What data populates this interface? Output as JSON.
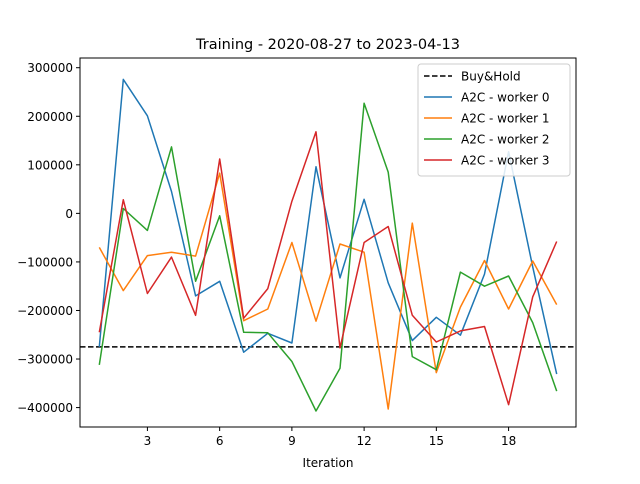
{
  "chart_data": {
    "type": "line",
    "title": "Training - 2020-08-27 to 2023-04-13",
    "xlabel": "Iteration",
    "ylabel": "",
    "xlim": [
      0.2,
      20.8
    ],
    "ylim": [
      -440000,
      320000
    ],
    "xticks": [
      3,
      6,
      9,
      12,
      15,
      18
    ],
    "yticks": [
      -400000,
      -300000,
      -200000,
      -100000,
      0,
      100000,
      200000,
      300000
    ],
    "xtick_labels": [
      "3",
      "6",
      "9",
      "12",
      "15",
      "18"
    ],
    "ytick_labels": [
      "−400000",
      "−300000",
      "−200000",
      "−100000",
      "0",
      "100000",
      "200000",
      "300000"
    ],
    "x": [
      1,
      2,
      3,
      4,
      5,
      6,
      7,
      8,
      9,
      10,
      11,
      12,
      13,
      14,
      15,
      16,
      17,
      18,
      19,
      20
    ],
    "baseline": {
      "name": "Buy&Hold",
      "value": -275000,
      "color": "#000000",
      "style": "dashed"
    },
    "series": [
      {
        "name": "A2C - worker 0",
        "color": "#1f77b4",
        "values": [
          -275000,
          276000,
          201000,
          45000,
          -170000,
          -140000,
          -286000,
          -247000,
          -267000,
          96000,
          -133000,
          29000,
          -143000,
          -262000,
          -214000,
          -251000,
          -125000,
          127000,
          -110000,
          -331000
        ]
      },
      {
        "name": "A2C - worker 1",
        "color": "#ff7f0e",
        "values": [
          -70000,
          -159000,
          -87000,
          -80000,
          -88000,
          83000,
          -221000,
          -197000,
          -60000,
          -222000,
          -63000,
          -80000,
          -403000,
          -20000,
          -328000,
          -193000,
          -97000,
          -197000,
          -98000,
          -188000
        ]
      },
      {
        "name": "A2C - worker 2",
        "color": "#2ca02c",
        "values": [
          -312000,
          10000,
          -35000,
          137000,
          -140000,
          -5000,
          -245000,
          -246000,
          -305000,
          -407000,
          -319000,
          227000,
          85000,
          -295000,
          -322000,
          -121000,
          -150000,
          -129000,
          -225000,
          -366000
        ]
      },
      {
        "name": "A2C - worker 3",
        "color": "#d62728",
        "values": [
          -245000,
          28000,
          -165000,
          -90000,
          -210000,
          112000,
          -216000,
          -155000,
          25000,
          168000,
          -277000,
          -60000,
          -27000,
          -210000,
          -265000,
          -242000,
          -233000,
          -394000,
          -172000,
          -58000
        ]
      }
    ],
    "legend": {
      "placement": "top-right"
    },
    "grid": false
  }
}
